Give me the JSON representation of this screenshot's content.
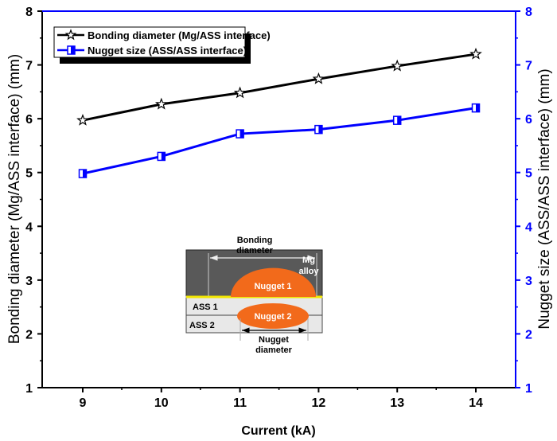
{
  "chart_data": {
    "type": "line",
    "x": [
      9,
      10,
      11,
      12,
      13,
      14
    ],
    "xlabel": "Current (kA)",
    "xlim": [
      8.5,
      14.5
    ],
    "ylim": [
      1,
      8
    ],
    "ylabel_left": "Bonding diameter (Mg/ASS interface) (mm)",
    "ylabel_right": "Nugget size (ASS/ASS interface) (mm)",
    "xticks": [
      "9",
      "10",
      "11",
      "12",
      "13",
      "14"
    ],
    "yticks": [
      "1",
      "2",
      "3",
      "4",
      "5",
      "6",
      "7",
      "8"
    ],
    "legend_position": "top-left",
    "series": [
      {
        "name": "Bonding diameter (Mg/ASS interface)",
        "color": "#000000",
        "marker": "star",
        "axis": "left",
        "values": [
          5.97,
          6.27,
          6.48,
          6.74,
          6.98,
          7.2
        ]
      },
      {
        "name": "Nugget size (ASS/ASS interface)",
        "color": "#0000ff",
        "marker": "half-square",
        "axis": "right",
        "values": [
          4.98,
          5.3,
          5.72,
          5.8,
          5.97,
          6.2
        ]
      }
    ],
    "inset": {
      "bonding_label": [
        "Bonding",
        "diameter"
      ],
      "mg_label": [
        "Mg",
        "alloy"
      ],
      "nugget1": "Nugget 1",
      "nugget2": "Nugget 2",
      "ass1": "ASS 1",
      "ass2": "ASS 2",
      "nugget_label": [
        "Nugget",
        "diameter"
      ]
    }
  }
}
